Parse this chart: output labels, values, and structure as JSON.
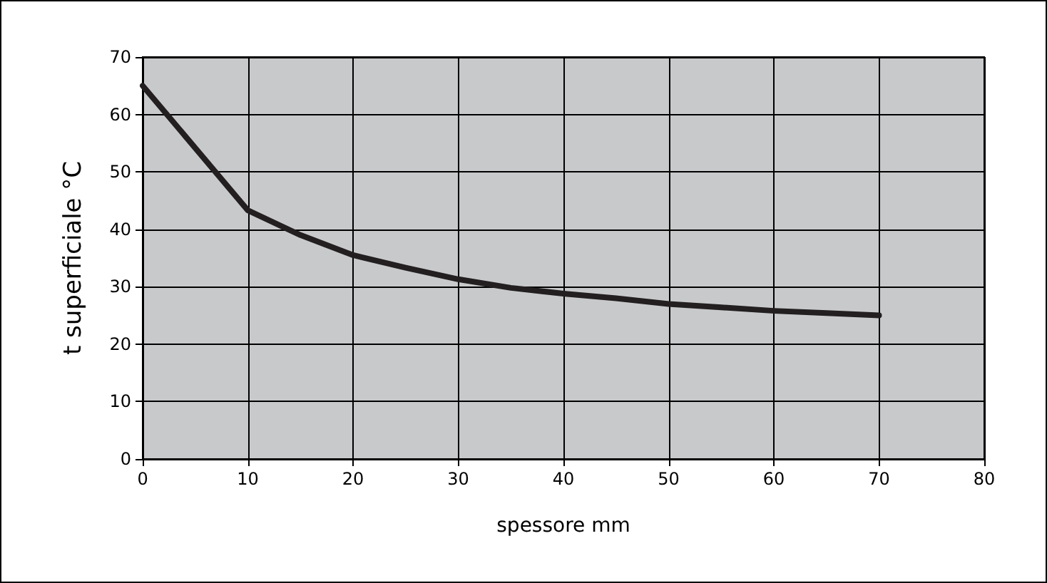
{
  "chart_data": {
    "type": "line",
    "xlabel": "spessore mm",
    "ylabel": "t superficiale °C",
    "x": [
      0,
      10,
      15,
      20,
      25,
      30,
      35,
      40,
      45,
      50,
      55,
      60,
      65,
      70
    ],
    "series": [
      {
        "color": "#231f20",
        "values": [
          65,
          43.3,
          39,
          35.5,
          33.3,
          31.3,
          29.8,
          28.8,
          28,
          27,
          26.4,
          25.8,
          25.4,
          25
        ]
      }
    ],
    "xlim": [
      0,
      80
    ],
    "xticks": [
      0,
      10,
      20,
      30,
      40,
      50,
      60,
      70,
      80
    ],
    "ylim": [
      0,
      70
    ],
    "yticks": [
      0,
      10,
      20,
      30,
      40,
      50,
      60,
      70
    ],
    "grid": true,
    "marker": "none",
    "line_style": "solid"
  }
}
